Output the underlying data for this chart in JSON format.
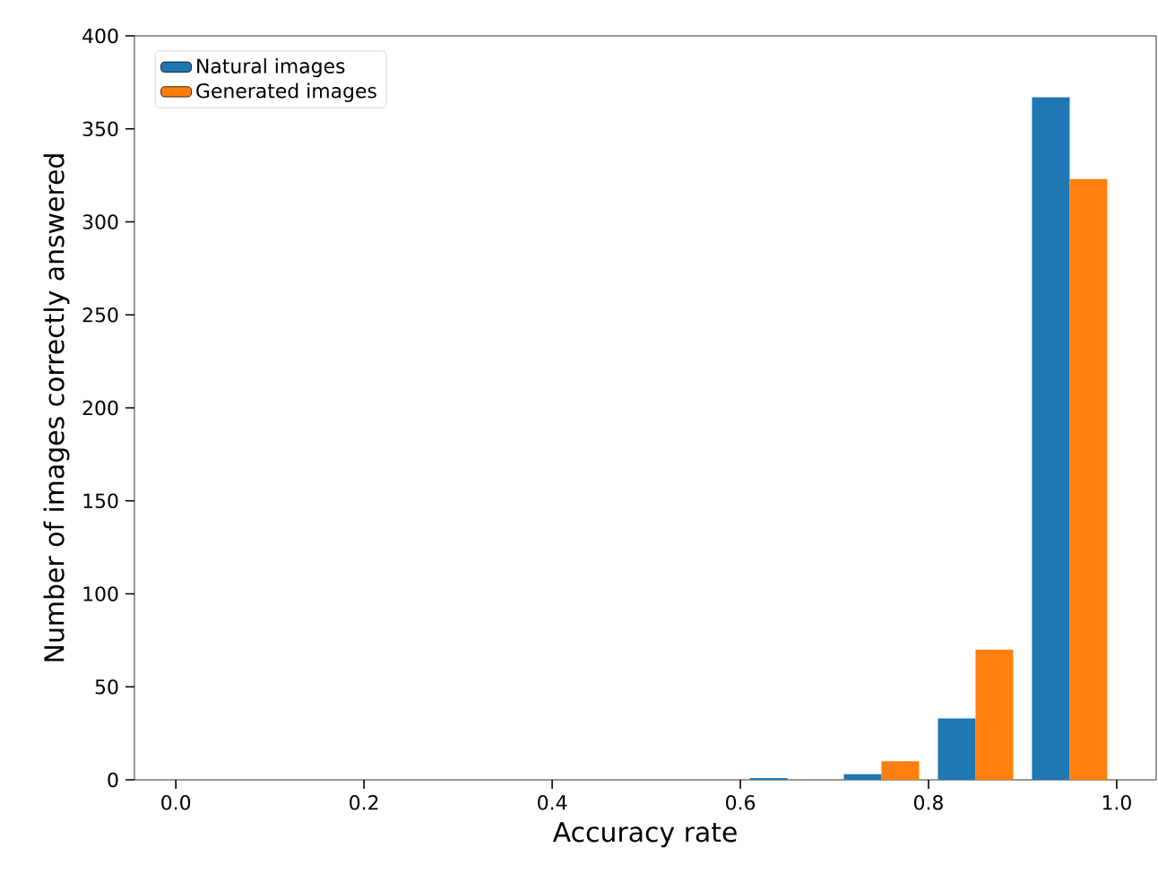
{
  "chart_data": {
    "type": "histogram",
    "xlabel": "Accuracy rate",
    "ylabel": "Number of images correctly answered",
    "bins": [
      0.0,
      0.1,
      0.2,
      0.3,
      0.4,
      0.5,
      0.6,
      0.7,
      0.8,
      0.9,
      1.0
    ],
    "series": [
      {
        "name": "Natural images",
        "color": "#1f77b4",
        "values": [
          0,
          0,
          0,
          0,
          0,
          0,
          1,
          3,
          33,
          367
        ]
      },
      {
        "name": "Generated images",
        "color": "#ff7f0e",
        "values": [
          0,
          0,
          0,
          0,
          0,
          0,
          0,
          10,
          70,
          323
        ]
      }
    ],
    "xlim": [
      -0.044,
      1.042
    ],
    "ylim": [
      0,
      400
    ],
    "xticks": [
      {
        "value": 0.0,
        "label": "0.0"
      },
      {
        "value": 0.2,
        "label": "0.2"
      },
      {
        "value": 0.4,
        "label": "0.4"
      },
      {
        "value": 0.6,
        "label": "0.6"
      },
      {
        "value": 0.8,
        "label": "0.8"
      },
      {
        "value": 1.0,
        "label": "1.0"
      }
    ],
    "yticks": [
      0,
      50,
      100,
      150,
      200,
      250,
      300,
      350,
      400
    ],
    "legend": "top left"
  }
}
